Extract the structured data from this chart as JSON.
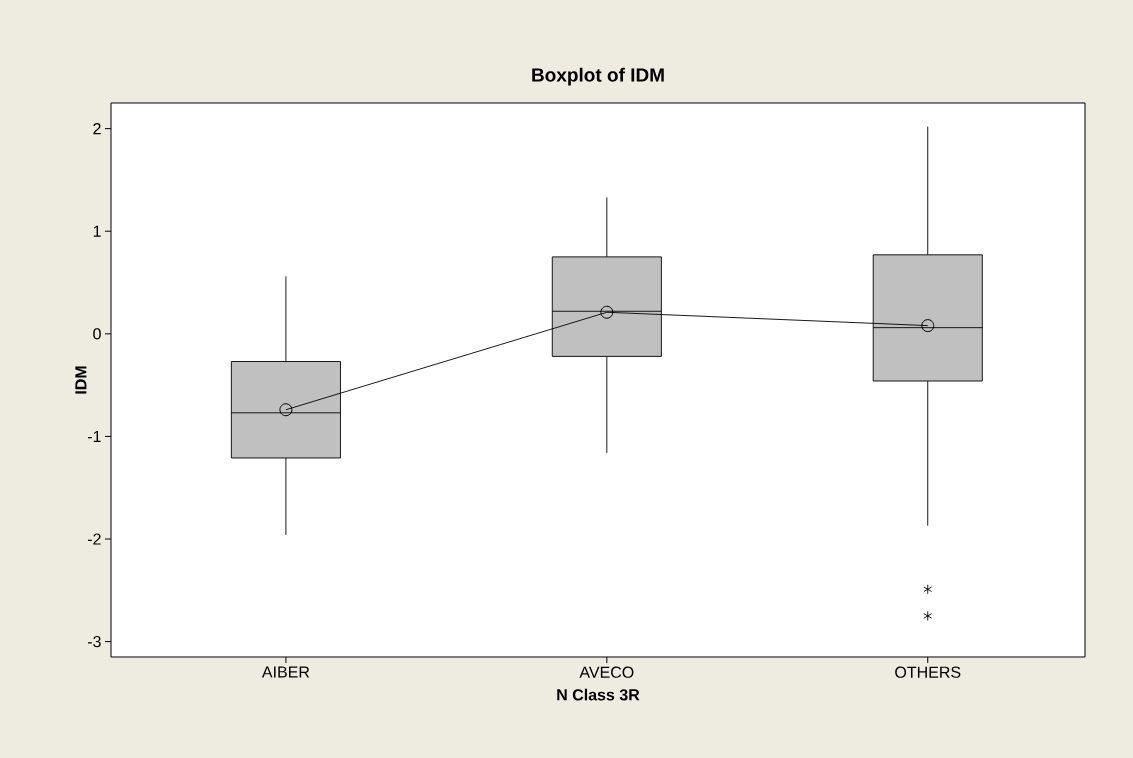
{
  "chart_data": {
    "type": "box",
    "title": "Boxplot of IDM",
    "xlabel": "N Class 3R",
    "ylabel": "IDM",
    "categories": [
      "AIBER",
      "AVECO",
      "OTHERS"
    ],
    "color": "#c0c0c0",
    "boxes": [
      {
        "low": -1.96,
        "q1": -1.21,
        "median": -0.77,
        "q3": -0.27,
        "high": 0.56
      },
      {
        "low": -1.16,
        "q1": -0.22,
        "median": 0.22,
        "q3": 0.75,
        "high": 1.33
      },
      {
        "low": -1.87,
        "q1": -0.46,
        "median": 0.06,
        "q3": 0.77,
        "high": 2.02,
        "outliers": [
          -2.49,
          -2.75
        ]
      }
    ],
    "series": [
      {
        "type": "line",
        "color": "#000000",
        "marker": "circle",
        "values": [
          -0.74,
          0.21,
          0.08
        ]
      }
    ],
    "ylim": [
      -3.15,
      2.25
    ],
    "yticks": [
      -3,
      -2,
      -1,
      0,
      1,
      2
    ]
  }
}
